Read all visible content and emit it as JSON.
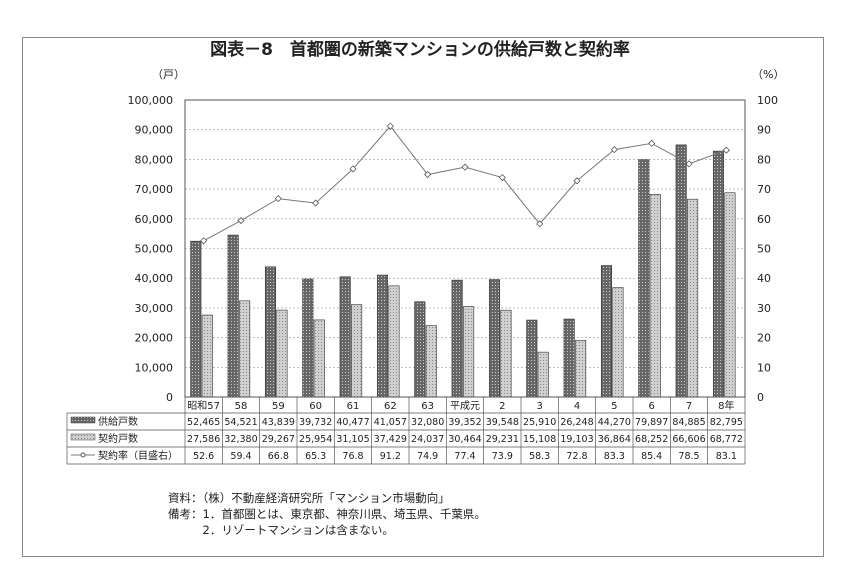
{
  "chart_data": {
    "type": "bar+line",
    "title": "図表－8　首都圏の新築マンションの供給戸数と契約率",
    "ylabel_left": "（戸）",
    "ylabel_right": "（%）",
    "ylim_left": [
      0,
      100000
    ],
    "ylim_right": [
      0,
      100
    ],
    "yticks_left": [
      "0",
      "10,000",
      "20,000",
      "30,000",
      "40,000",
      "50,000",
      "60,000",
      "70,000",
      "80,000",
      "90,000",
      "100,000"
    ],
    "yticks_right": [
      "0",
      "10",
      "20",
      "30",
      "40",
      "50",
      "60",
      "70",
      "80",
      "90",
      "100"
    ],
    "categories": [
      "昭和57",
      "58",
      "59",
      "60",
      "61",
      "62",
      "63",
      "平成元",
      "2",
      "3",
      "4",
      "5",
      "6",
      "7",
      "8年"
    ],
    "series": [
      {
        "name": "供給戸数",
        "kind": "bar",
        "color": "#555555",
        "values": [
          52465,
          54521,
          43839,
          39732,
          40477,
          41057,
          32080,
          39352,
          39548,
          25910,
          26248,
          44270,
          79897,
          84885,
          82795
        ],
        "labels": [
          "52,465",
          "54,521",
          "43,839",
          "39,732",
          "40,477",
          "41,057",
          "32,080",
          "39,352",
          "39,548",
          "25,910",
          "26,248",
          "44,270",
          "79,897",
          "84,885",
          "82,795"
        ]
      },
      {
        "name": "契約戸数",
        "kind": "bar",
        "color": "#aaaaaa",
        "values": [
          27586,
          32380,
          29267,
          25954,
          31105,
          37429,
          24037,
          30464,
          29231,
          15108,
          19103,
          36864,
          68252,
          66606,
          68772
        ],
        "labels": [
          "27,586",
          "32,380",
          "29,267",
          "25,954",
          "31,105",
          "37,429",
          "24,037",
          "30,464",
          "29,231",
          "15,108",
          "19,103",
          "36,864",
          "68,252",
          "66,606",
          "68,772"
        ]
      },
      {
        "name": "契約率（目盛右）",
        "kind": "line",
        "axis": "right",
        "color": "#777777",
        "values": [
          52.6,
          59.4,
          66.8,
          65.3,
          76.8,
          91.2,
          74.9,
          77.4,
          73.9,
          58.3,
          72.8,
          83.3,
          85.4,
          78.5,
          83.1
        ],
        "labels": [
          "52.6",
          "59.4",
          "66.8",
          "65.3",
          "76.8",
          "91.2",
          "74.9",
          "77.4",
          "73.9",
          "58.3",
          "72.8",
          "83.3",
          "85.4",
          "78.5",
          "83.1"
        ]
      }
    ],
    "grid": true,
    "legend": "table-left"
  },
  "notes": [
    "資料：（株）不動産経済研究所「マンション市場動向」",
    "備考：1．首都圏とは、東京都、神奈川県、埼玉県、千葉県。",
    "　　　2．リゾートマンションは含まない。"
  ]
}
